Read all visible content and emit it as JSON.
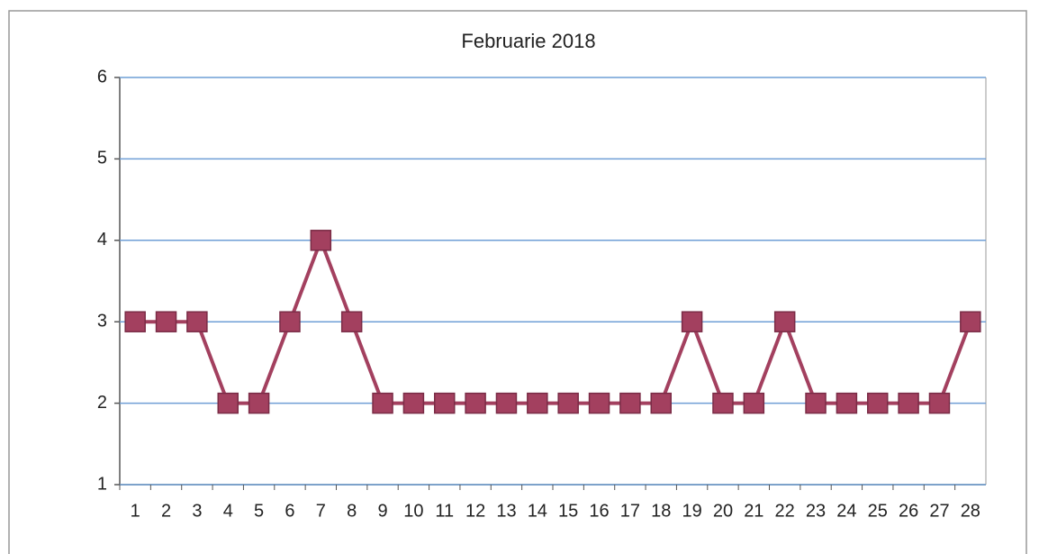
{
  "chart_data": {
    "type": "line",
    "title": "Februarie 2018",
    "categories": [
      1,
      2,
      3,
      4,
      5,
      6,
      7,
      8,
      9,
      10,
      11,
      12,
      13,
      14,
      15,
      16,
      17,
      18,
      19,
      20,
      21,
      22,
      23,
      24,
      25,
      26,
      27,
      28
    ],
    "series": [
      {
        "name": "Februarie 2018",
        "color": "#a3405f",
        "values": [
          3,
          3,
          3,
          2,
          2,
          3,
          4,
          3,
          2,
          2,
          2,
          2,
          2,
          2,
          2,
          2,
          2,
          2,
          3,
          2,
          2,
          3,
          2,
          2,
          2,
          2,
          2,
          3
        ]
      }
    ],
    "ylim": [
      1,
      6
    ],
    "yticks": [
      1,
      2,
      3,
      4,
      5,
      6
    ],
    "grid": true
  }
}
